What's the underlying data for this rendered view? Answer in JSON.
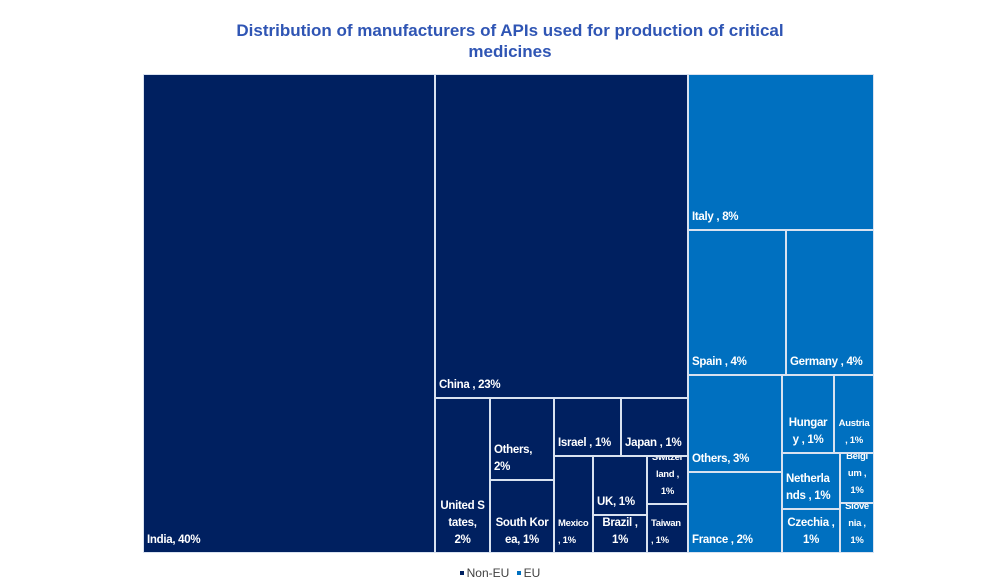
{
  "chart_data": {
    "type": "treemap",
    "title": "Distribution of manufacturers of APIs used for production of critical medicines",
    "legend": {
      "position": "bottom",
      "entries": [
        {
          "name": "Non-EU",
          "color": "#002060"
        },
        {
          "name": "EU",
          "color": "#0070C0"
        }
      ]
    },
    "items": [
      {
        "label": "India, 40%",
        "group": "Non-EU",
        "value": 40
      },
      {
        "label": "China , 23%",
        "group": "Non-EU",
        "value": 23
      },
      {
        "label": "United States, 2%",
        "group": "Non-EU",
        "value": 2
      },
      {
        "label": "Others, 2%",
        "group": "Non-EU",
        "value": 2
      },
      {
        "label": "South Korea, 1%",
        "group": "Non-EU",
        "value": 1
      },
      {
        "label": "Israel , 1%",
        "group": "Non-EU",
        "value": 1
      },
      {
        "label": "Japan , 1%",
        "group": "Non-EU",
        "value": 1
      },
      {
        "label": "Mexico , 1%",
        "group": "Non-EU",
        "value": 1
      },
      {
        "label": "UK, 1%",
        "group": "Non-EU",
        "value": 1
      },
      {
        "label": "Brazil , 1%",
        "group": "Non-EU",
        "value": 1
      },
      {
        "label": "Switzerland , 1%",
        "group": "Non-EU",
        "value": 1
      },
      {
        "label": "Taiwan , 1%",
        "group": "Non-EU",
        "value": 1
      },
      {
        "label": "Italy , 8%",
        "group": "EU",
        "value": 8
      },
      {
        "label": "Spain , 4%",
        "group": "EU",
        "value": 4
      },
      {
        "label": "Germany , 4%",
        "group": "EU",
        "value": 4
      },
      {
        "label": "Others, 3%",
        "group": "EU",
        "value": 3
      },
      {
        "label": "France , 2%",
        "group": "EU",
        "value": 2
      },
      {
        "label": "Hungary , 1%",
        "group": "EU",
        "value": 1
      },
      {
        "label": "Austria , 1%",
        "group": "EU",
        "value": 1
      },
      {
        "label": "Netherlands , 1%",
        "group": "EU",
        "value": 1
      },
      {
        "label": "Czechia , 1%",
        "group": "EU",
        "value": 1
      },
      {
        "label": "Belgium , 1%",
        "group": "EU",
        "value": 1
      },
      {
        "label": "Slovenia , 1%",
        "group": "EU",
        "value": 1
      }
    ]
  }
}
